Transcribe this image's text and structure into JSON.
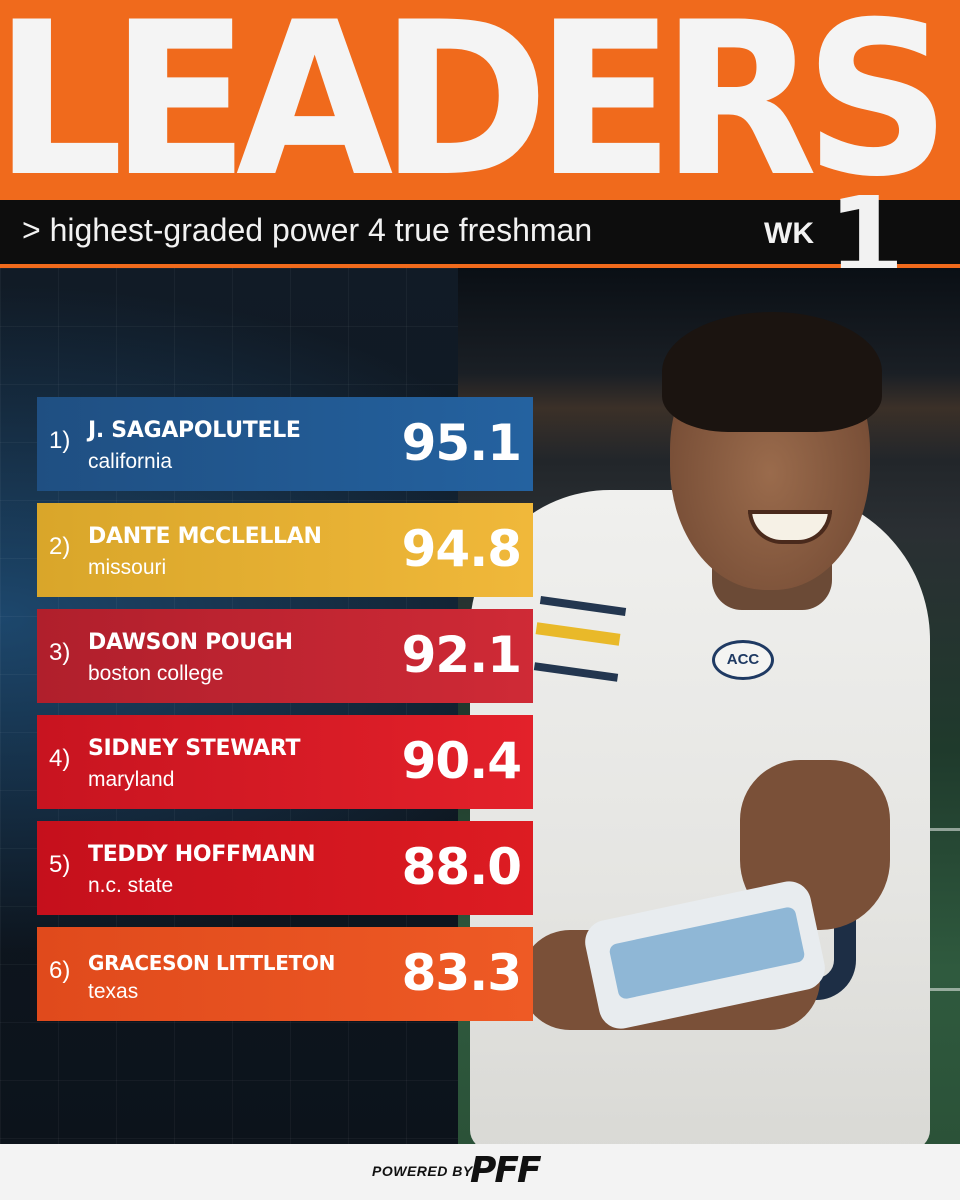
{
  "header": {
    "title": "LEADERS",
    "subtitle": "> highest-graded power 4 true freshman",
    "week_label": "WK",
    "week_number": "1"
  },
  "leaders": [
    {
      "rank": "1)",
      "name": "J. SAGAPOLUTELE",
      "school": "california",
      "grade": "95.1",
      "color": "#2462a0"
    },
    {
      "rank": "2)",
      "name": "DANTE MCCLELLAN",
      "school": "missouri",
      "grade": "94.8",
      "color": "#f0b83a"
    },
    {
      "rank": "3)",
      "name": "DAWSON POUGH",
      "school": "boston college",
      "grade": "92.1",
      "color": "#cf2a36"
    },
    {
      "rank": "4)",
      "name": "SIDNEY STEWART",
      "school": "maryland",
      "grade": "90.4",
      "color": "#e3212a"
    },
    {
      "rank": "5)",
      "name": "TEDDY HOFFMANN",
      "school": "n.c. state",
      "grade": "88.0",
      "color": "#dd1c22"
    },
    {
      "rank": "6)",
      "name": "GRACESON LITTLETON",
      "school": "texas",
      "grade": "83.3",
      "color": "#ee5a25"
    }
  ],
  "photo": {
    "jersey_badge": "ACC"
  },
  "footer": {
    "powered_by": "POWERED BY",
    "brand": "PFF"
  },
  "colors": {
    "accent": "#f06a1c",
    "bar": "#0d0d0d"
  }
}
